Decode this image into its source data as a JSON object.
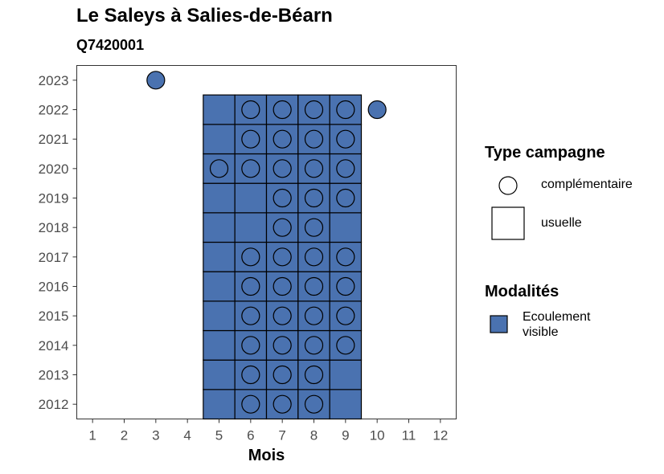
{
  "title": "Le Saleys à Salies-de-Béarn",
  "subtitle": "Q7420001",
  "chart_data": {
    "type": "heatmap",
    "xlabel": "Mois",
    "ylabel": "",
    "x_ticks": [
      "1",
      "2",
      "3",
      "4",
      "5",
      "6",
      "7",
      "8",
      "9",
      "10",
      "11",
      "12"
    ],
    "y_ticks": [
      "2012",
      "2013",
      "2014",
      "2015",
      "2016",
      "2017",
      "2018",
      "2019",
      "2020",
      "2021",
      "2022",
      "2023"
    ],
    "xlim": [
      0.5,
      12.5
    ],
    "ylim": [
      2011.5,
      2023.5
    ],
    "grid": false,
    "fill_color": "#4a72b0",
    "usuelle_months": [
      5,
      6,
      7,
      8,
      9
    ],
    "usuelle_years": [
      2012,
      2013,
      2014,
      2015,
      2016,
      2017,
      2018,
      2019,
      2020,
      2021,
      2022
    ],
    "complementaire": [
      {
        "year": 2012,
        "months": [
          6,
          7,
          8
        ]
      },
      {
        "year": 2013,
        "months": [
          6,
          7,
          8
        ]
      },
      {
        "year": 2014,
        "months": [
          6,
          7,
          8,
          9
        ]
      },
      {
        "year": 2015,
        "months": [
          6,
          7,
          8,
          9
        ]
      },
      {
        "year": 2016,
        "months": [
          6,
          7,
          8,
          9
        ]
      },
      {
        "year": 2017,
        "months": [
          6,
          7,
          8,
          9
        ]
      },
      {
        "year": 2018,
        "months": [
          7,
          8
        ]
      },
      {
        "year": 2019,
        "months": [
          7,
          8,
          9
        ]
      },
      {
        "year": 2020,
        "months": [
          5,
          6,
          7,
          8,
          9
        ]
      },
      {
        "year": 2021,
        "months": [
          6,
          7,
          8,
          9
        ]
      },
      {
        "year": 2022,
        "months": [
          6,
          7,
          8,
          9,
          10
        ]
      },
      {
        "year": 2023,
        "months": [
          3
        ]
      }
    ]
  },
  "legend": {
    "type_title": "Type campagne",
    "type_items": [
      {
        "shape": "circle",
        "label": "complémentaire"
      },
      {
        "shape": "square",
        "label": "usuelle"
      }
    ],
    "modalites_title": "Modalités",
    "modalites_items": [
      {
        "color": "#4a72b0",
        "label": "Ecoulement visible"
      }
    ]
  }
}
